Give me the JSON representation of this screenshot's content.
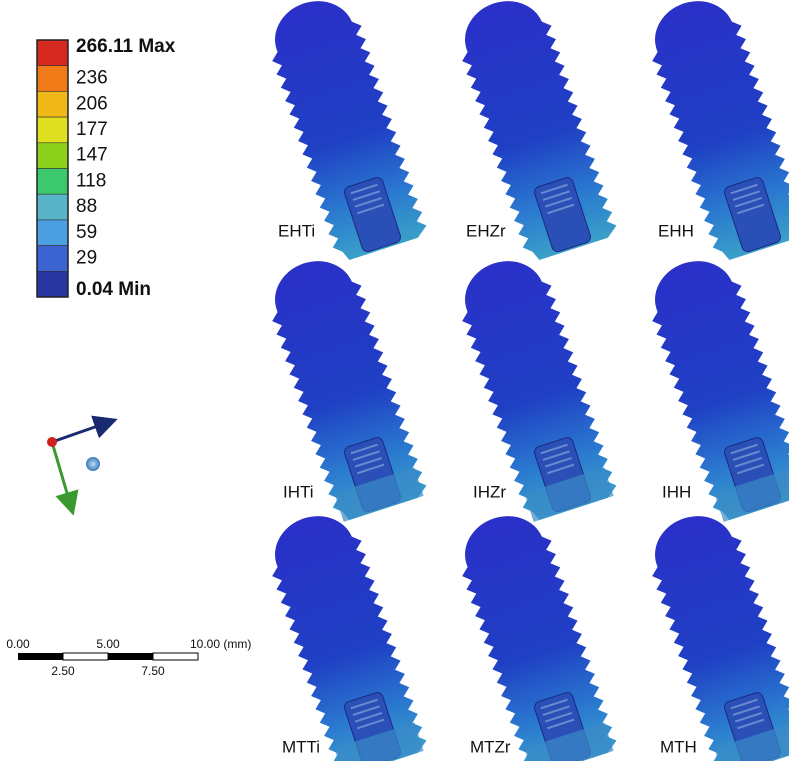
{
  "legend": {
    "labels": [
      "266.11 Max",
      "236",
      "206",
      "177",
      "147",
      "118",
      "88",
      "59",
      "29",
      "0.04 Min"
    ],
    "colors": [
      "#d62a20",
      "#f07a18",
      "#f0b818",
      "#e0e020",
      "#8cd21c",
      "#3cc86c",
      "#58b4c8",
      "#4aa0e0",
      "#3c64d0",
      "#2838a0"
    ]
  },
  "scale_bar": {
    "top_labels": [
      "0.00",
      "5.00",
      "10.00 (mm)"
    ],
    "bottom_labels": [
      "2.50",
      "7.50"
    ]
  },
  "panels": [
    {
      "label": "EHTi"
    },
    {
      "label": "EHZr"
    },
    {
      "label": "EHH"
    },
    {
      "label": "IHTi"
    },
    {
      "label": "IHZr"
    },
    {
      "label": "IHH"
    },
    {
      "label": "MTTi"
    },
    {
      "label": "MTZr"
    },
    {
      "label": "MTH"
    }
  ]
}
